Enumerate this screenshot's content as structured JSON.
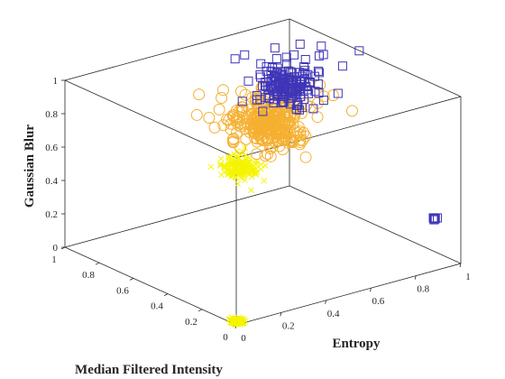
{
  "chart_data": {
    "type": "scatter",
    "dimensions": 3,
    "title": "",
    "xlabel": "Entropy",
    "ylabel": "Median Filtered Intensity",
    "zlabel": "Gaussian Blur",
    "xlim": [
      0,
      1
    ],
    "ylim": [
      0,
      1
    ],
    "zlim": [
      0,
      1
    ],
    "xticks": [
      "0",
      "0.2",
      "0.4",
      "0.6",
      "0.8",
      "1"
    ],
    "yticks": [
      "0",
      "0.2",
      "0.4",
      "0.6",
      "0.8",
      "1"
    ],
    "zticks": [
      "0",
      "0.2",
      "0.4",
      "0.6",
      "0.8",
      "1"
    ],
    "grid": false,
    "box": true,
    "legend": "none",
    "series": [
      {
        "marker": "x",
        "color": "#f5f500",
        "clusters": [
          {
            "x": 0.02,
            "y": 0.02,
            "z": 0.0,
            "count": 110,
            "spread": [
              0.015,
              0.015,
              0.01
            ]
          },
          {
            "x": 0.34,
            "y": 0.42,
            "z": 0.62,
            "count": 160,
            "spread": [
              0.03,
              0.04,
              0.03
            ]
          }
        ]
      },
      {
        "marker": "o",
        "color": "#f5b031",
        "clusters": [
          {
            "x": 0.48,
            "y": 0.46,
            "z": 0.8,
            "count": 230,
            "spread": [
              0.06,
              0.07,
              0.05
            ]
          },
          {
            "x": 0.56,
            "y": 0.54,
            "z": 0.83,
            "count": 70,
            "spread": [
              0.1,
              0.1,
              0.05
            ]
          }
        ]
      },
      {
        "marker": "square",
        "color": "#3f35b8",
        "clusters": [
          {
            "x": 0.68,
            "y": 0.6,
            "z": 0.9,
            "count": 150,
            "spread": [
              0.05,
              0.06,
              0.05
            ]
          },
          {
            "x": 0.78,
            "y": 0.7,
            "z": 0.93,
            "count": 25,
            "spread": [
              0.1,
              0.1,
              0.04
            ]
          },
          {
            "x": 0.9,
            "y": 0.02,
            "z": 0.3,
            "count": 8,
            "spread": [
              0.005,
              0.005,
              0.005
            ]
          }
        ]
      }
    ]
  }
}
